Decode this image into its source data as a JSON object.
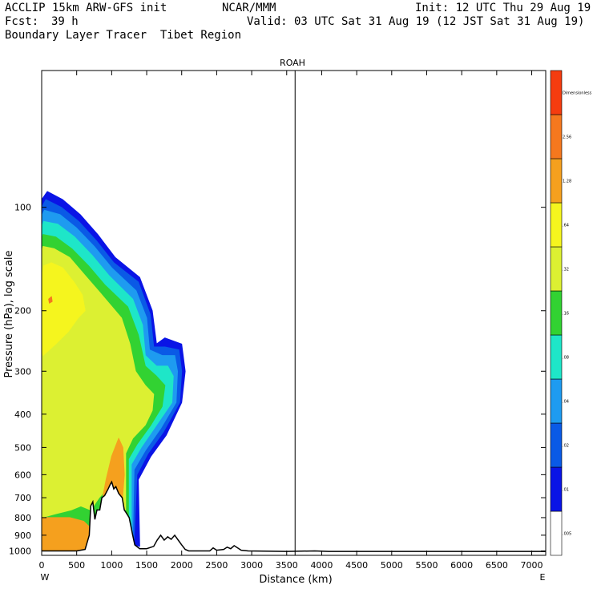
{
  "header": {
    "model": "ACCLIP 15km ARW-GFS init",
    "org": "NCAR/MMM",
    "init": "Init: 12 UTC Thu 29 Aug 19",
    "fcst_label": "Fcst:",
    "fcst_value": "39 h",
    "valid": "Valid: 03 UTC Sat 31 Aug 19 (12 JST Sat 31 Aug 19)",
    "product": "Boundary Layer Tracer  Tibet Region"
  },
  "chart_data": {
    "type": "heatmap",
    "subtitle": "ROAH",
    "xlabel": "Distance (km)",
    "ylabel": "Pressure (hPa), log scale",
    "xlim": [
      0,
      7200
    ],
    "ylim": [
      1030,
      40
    ],
    "y_scale": "log",
    "x_ticks": [
      0,
      500,
      1000,
      1500,
      2000,
      2500,
      3000,
      3500,
      4000,
      4500,
      5000,
      5500,
      6000,
      6500,
      7000
    ],
    "y_ticks": [
      100,
      200,
      300,
      400,
      500,
      600,
      700,
      800,
      900,
      1000
    ],
    "x_end_labels": {
      "left": "W",
      "right": "E"
    },
    "marker_line_x": 3620,
    "colorbar": {
      "bands": [
        {
          "color": "#ffffff",
          "label": ".005"
        },
        {
          "color": "#0a14e6",
          "label": ".01"
        },
        {
          "color": "#0a5ae6",
          "label": ".02"
        },
        {
          "color": "#1e9bf0",
          "label": ".04"
        },
        {
          "color": "#1ee6c8",
          "label": ".08"
        },
        {
          "color": "#32d232",
          "label": ".16"
        },
        {
          "color": "#dcf032",
          "label": ".32"
        },
        {
          "color": "#f5f51e",
          "label": ".64"
        },
        {
          "color": "#f5a01e",
          "label": "1.28"
        },
        {
          "color": "#f5781e",
          "label": "2.56"
        },
        {
          "color": "#f53c0f",
          "label": "Dimensionless"
        }
      ]
    },
    "terrain": [
      [
        0,
        1000
      ],
      [
        200,
        1000
      ],
      [
        500,
        1000
      ],
      [
        620,
        990
      ],
      [
        680,
        900
      ],
      [
        700,
        740
      ],
      [
        730,
        720
      ],
      [
        760,
        810
      ],
      [
        790,
        760
      ],
      [
        830,
        760
      ],
      [
        860,
        700
      ],
      [
        900,
        690
      ],
      [
        950,
        660
      ],
      [
        980,
        640
      ],
      [
        1000,
        630
      ],
      [
        1030,
        660
      ],
      [
        1060,
        650
      ],
      [
        1100,
        680
      ],
      [
        1150,
        700
      ],
      [
        1180,
        760
      ],
      [
        1200,
        770
      ],
      [
        1250,
        800
      ],
      [
        1300,
        900
      ],
      [
        1330,
        960
      ],
      [
        1400,
        985
      ],
      [
        1500,
        985
      ],
      [
        1600,
        970
      ],
      [
        1650,
        930
      ],
      [
        1700,
        900
      ],
      [
        1750,
        930
      ],
      [
        1800,
        910
      ],
      [
        1850,
        925
      ],
      [
        1900,
        900
      ],
      [
        1950,
        930
      ],
      [
        2000,
        960
      ],
      [
        2050,
        990
      ],
      [
        2100,
        1000
      ],
      [
        2400,
        1000
      ],
      [
        2450,
        980
      ],
      [
        2500,
        995
      ],
      [
        2600,
        990
      ],
      [
        2650,
        975
      ],
      [
        2700,
        985
      ],
      [
        2750,
        965
      ],
      [
        2800,
        980
      ],
      [
        2850,
        995
      ],
      [
        2950,
        1000
      ],
      [
        3500,
        1003
      ],
      [
        3900,
        1000
      ],
      [
        4100,
        1003
      ],
      [
        7200,
        1003
      ]
    ],
    "tracer_levels": [
      {
        "value": 0.01,
        "color": "#0a14e6",
        "polygon": [
          [
            0,
            1000
          ],
          [
            620,
            1000
          ],
          [
            700,
            740
          ],
          [
            860,
            700
          ],
          [
            1000,
            630
          ],
          [
            1150,
            700
          ],
          [
            1330,
            960
          ],
          [
            1400,
            970
          ],
          [
            1380,
            620
          ],
          [
            1560,
            530
          ],
          [
            1780,
            460
          ],
          [
            2000,
            370
          ],
          [
            2050,
            300
          ],
          [
            2000,
            250
          ],
          [
            1760,
            240
          ],
          [
            1640,
            250
          ],
          [
            1580,
            200
          ],
          [
            1400,
            160
          ],
          [
            1050,
            140
          ],
          [
            800,
            120
          ],
          [
            550,
            105
          ],
          [
            300,
            95
          ],
          [
            80,
            90
          ],
          [
            0,
            95
          ]
        ]
      },
      {
        "value": 0.02,
        "color": "#0a5ae6",
        "polygon": [
          [
            0,
            1000
          ],
          [
            620,
            1000
          ],
          [
            700,
            740
          ],
          [
            860,
            700
          ],
          [
            1000,
            630
          ],
          [
            1150,
            700
          ],
          [
            1320,
            930
          ],
          [
            1360,
            600
          ],
          [
            1520,
            520
          ],
          [
            1740,
            450
          ],
          [
            1970,
            370
          ],
          [
            2000,
            300
          ],
          [
            1960,
            260
          ],
          [
            1760,
            255
          ],
          [
            1600,
            255
          ],
          [
            1550,
            205
          ],
          [
            1380,
            165
          ],
          [
            1030,
            145
          ],
          [
            780,
            125
          ],
          [
            530,
            110
          ],
          [
            280,
            100
          ],
          [
            60,
            95
          ],
          [
            0,
            100
          ]
        ]
      },
      {
        "value": 0.04,
        "color": "#1e9bf0",
        "polygon": [
          [
            0,
            1000
          ],
          [
            620,
            1000
          ],
          [
            700,
            740
          ],
          [
            860,
            700
          ],
          [
            1000,
            630
          ],
          [
            1150,
            700
          ],
          [
            1300,
            900
          ],
          [
            1320,
            580
          ],
          [
            1480,
            510
          ],
          [
            1700,
            440
          ],
          [
            1920,
            370
          ],
          [
            1940,
            300
          ],
          [
            1900,
            270
          ],
          [
            1720,
            270
          ],
          [
            1540,
            260
          ],
          [
            1500,
            210
          ],
          [
            1350,
            175
          ],
          [
            1000,
            150
          ],
          [
            750,
            130
          ],
          [
            500,
            115
          ],
          [
            260,
            105
          ],
          [
            40,
            102
          ],
          [
            0,
            106
          ]
        ]
      },
      {
        "value": 0.08,
        "color": "#1ee6c8",
        "polygon": [
          [
            0,
            1000
          ],
          [
            620,
            1000
          ],
          [
            700,
            740
          ],
          [
            860,
            700
          ],
          [
            1000,
            630
          ],
          [
            1150,
            700
          ],
          [
            1280,
            860
          ],
          [
            1280,
            560
          ],
          [
            1420,
            500
          ],
          [
            1640,
            430
          ],
          [
            1860,
            370
          ],
          [
            1880,
            310
          ],
          [
            1800,
            290
          ],
          [
            1640,
            290
          ],
          [
            1480,
            270
          ],
          [
            1440,
            220
          ],
          [
            1300,
            185
          ],
          [
            960,
            158
          ],
          [
            720,
            138
          ],
          [
            470,
            122
          ],
          [
            230,
            112
          ],
          [
            30,
            110
          ],
          [
            0,
            114
          ]
        ]
      },
      {
        "value": 0.16,
        "color": "#32d232",
        "polygon": [
          [
            0,
            940
          ],
          [
            300,
            920
          ],
          [
            560,
            900
          ],
          [
            680,
            860
          ],
          [
            760,
            800
          ],
          [
            860,
            720
          ],
          [
            1000,
            650
          ],
          [
            1150,
            720
          ],
          [
            1240,
            800
          ],
          [
            1240,
            540
          ],
          [
            1360,
            490
          ],
          [
            1560,
            430
          ],
          [
            1720,
            380
          ],
          [
            1760,
            330
          ],
          [
            1640,
            310
          ],
          [
            1480,
            290
          ],
          [
            1380,
            235
          ],
          [
            1230,
            195
          ],
          [
            900,
            168
          ],
          [
            670,
            148
          ],
          [
            430,
            132
          ],
          [
            200,
            122
          ],
          [
            20,
            120
          ],
          [
            0,
            124
          ]
        ]
      },
      {
        "value": 0.32,
        "color": "#dcf032",
        "polygon": [
          [
            0,
            800
          ],
          [
            200,
            780
          ],
          [
            420,
            760
          ],
          [
            560,
            740
          ],
          [
            700,
            760
          ],
          [
            820,
            700
          ],
          [
            960,
            650
          ],
          [
            1100,
            700
          ],
          [
            1200,
            760
          ],
          [
            1200,
            520
          ],
          [
            1300,
            470
          ],
          [
            1480,
            430
          ],
          [
            1580,
            390
          ],
          [
            1600,
            350
          ],
          [
            1480,
            330
          ],
          [
            1340,
            300
          ],
          [
            1260,
            250
          ],
          [
            1140,
            210
          ],
          [
            840,
            178
          ],
          [
            620,
            158
          ],
          [
            400,
            140
          ],
          [
            180,
            132
          ],
          [
            20,
            130
          ],
          [
            0,
            135
          ]
        ]
      },
      {
        "value": 0.64,
        "color": "#f5f51e",
        "polygon": [
          [
            20,
            270
          ],
          [
            200,
            250
          ],
          [
            380,
            230
          ],
          [
            520,
            210
          ],
          [
            620,
            200
          ],
          [
            580,
            180
          ],
          [
            460,
            165
          ],
          [
            300,
            150
          ],
          [
            140,
            145
          ],
          [
            30,
            148
          ],
          [
            0,
            160
          ],
          [
            0,
            260
          ]
        ]
      },
      {
        "value": 1.28,
        "color": "#f5a01e",
        "polygon": [
          [
            0,
            1000
          ],
          [
            620,
            1000
          ],
          [
            680,
            960
          ],
          [
            680,
            850
          ],
          [
            600,
            820
          ],
          [
            400,
            800
          ],
          [
            200,
            800
          ],
          [
            0,
            800
          ]
        ]
      },
      {
        "value": 1.28,
        "color": "#f5a01e",
        "polygon": [
          [
            860,
            720
          ],
          [
            960,
            660
          ],
          [
            1060,
            650
          ],
          [
            1150,
            720
          ],
          [
            1180,
            600
          ],
          [
            1160,
            500
          ],
          [
            1100,
            470
          ],
          [
            1000,
            530
          ],
          [
            920,
            620
          ]
        ]
      },
      {
        "value": 2.56,
        "color": "#f5781e",
        "polygon": [
          [
            100,
            185
          ],
          [
            140,
            182
          ],
          [
            150,
            188
          ],
          [
            110,
            190
          ]
        ]
      }
    ]
  }
}
